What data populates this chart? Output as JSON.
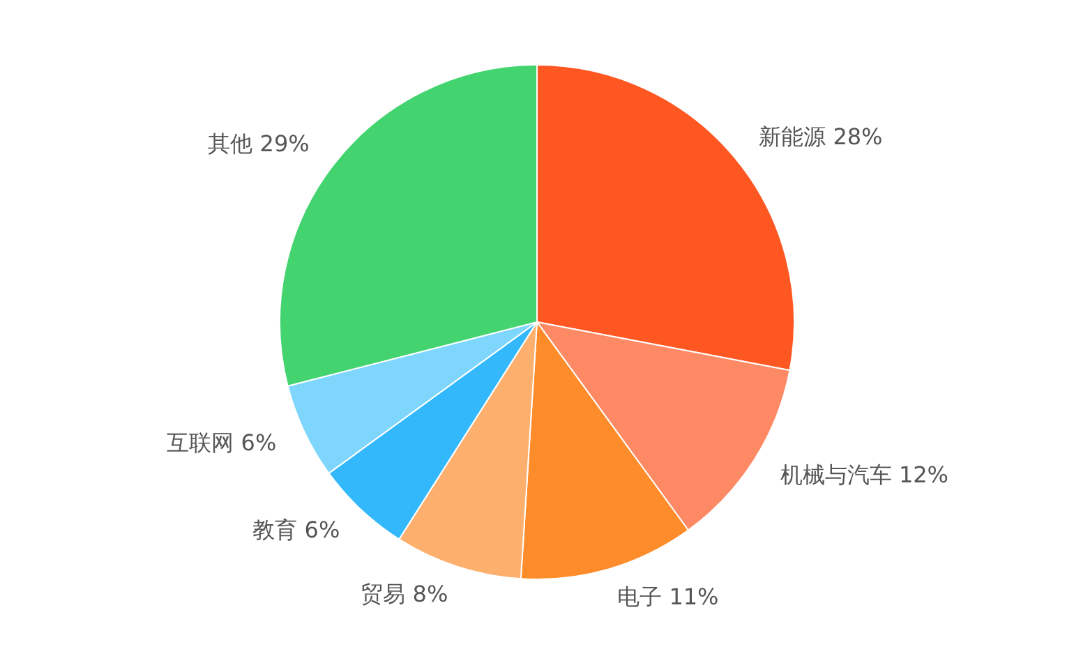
{
  "chart_data": {
    "type": "pie",
    "categories": [
      "新能源",
      "机械与汽车",
      "电子",
      "贸易",
      "教育",
      "互联网",
      "其他"
    ],
    "values": [
      28,
      12,
      11,
      8,
      6,
      6,
      29
    ],
    "colors": [
      "#fe5722",
      "#fe8a65",
      "#fe8c2a",
      "#fdaf6e",
      "#33b8fc",
      "#7fd6fd",
      "#43d470"
    ],
    "value_labels": [
      "28%",
      "12%",
      "11%",
      "8%",
      "6%",
      "6%",
      "29%"
    ],
    "legend": false
  }
}
